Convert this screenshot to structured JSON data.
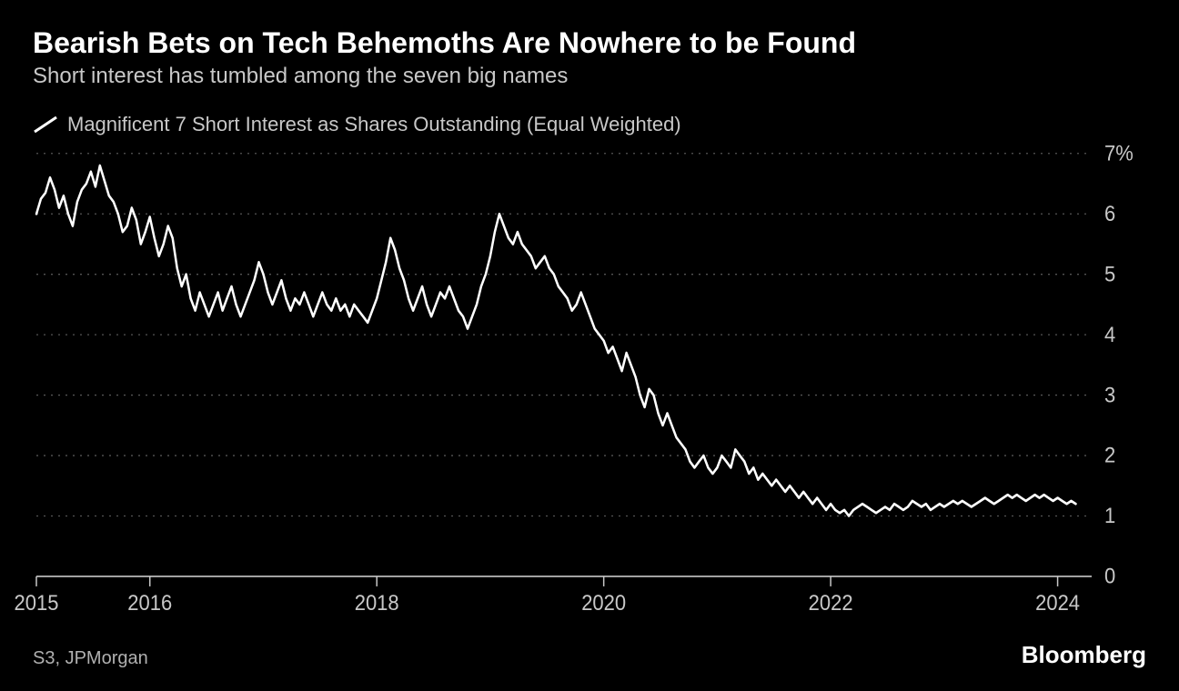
{
  "title": "Bearish Bets on Tech Behemoths Are Nowhere to be Found",
  "subtitle": "Short interest has tumbled among the seven big names",
  "legend": {
    "label": "Magnificent 7 Short Interest as Shares Outstanding (Equal Weighted)"
  },
  "chart": {
    "type": "line",
    "background_color": "#000000",
    "line_color": "#ffffff",
    "line_width": 2.5,
    "grid_color": "#555555",
    "grid_dash": "2 6",
    "axis_color": "#c8c8c8",
    "tick_color": "#c8c8c8",
    "label_color": "#c8c8c8",
    "label_fontsize": 22,
    "xlim": [
      2015.0,
      2024.3
    ],
    "ylim": [
      0,
      7
    ],
    "yticks": [
      0,
      1,
      2,
      3,
      4,
      5,
      6,
      7
    ],
    "ytick_labels": [
      "0",
      "1",
      "2",
      "3",
      "4",
      "5",
      "6",
      "7%"
    ],
    "xticks": [
      2015,
      2016,
      2018,
      2020,
      2022,
      2024
    ],
    "xtick_labels": [
      "2015",
      "2016",
      "2018",
      "2020",
      "2022",
      "2024"
    ],
    "series": [
      {
        "name": "mag7_short_interest",
        "x": [
          2015.0,
          2015.04,
          2015.08,
          2015.12,
          2015.16,
          2015.2,
          2015.24,
          2015.28,
          2015.32,
          2015.36,
          2015.4,
          2015.44,
          2015.48,
          2015.52,
          2015.56,
          2015.6,
          2015.64,
          2015.68,
          2015.72,
          2015.76,
          2015.8,
          2015.84,
          2015.88,
          2015.92,
          2015.96,
          2016.0,
          2016.04,
          2016.08,
          2016.12,
          2016.16,
          2016.2,
          2016.24,
          2016.28,
          2016.32,
          2016.36,
          2016.4,
          2016.44,
          2016.48,
          2016.52,
          2016.56,
          2016.6,
          2016.64,
          2016.68,
          2016.72,
          2016.76,
          2016.8,
          2016.84,
          2016.88,
          2016.92,
          2016.96,
          2017.0,
          2017.04,
          2017.08,
          2017.12,
          2017.16,
          2017.2,
          2017.24,
          2017.28,
          2017.32,
          2017.36,
          2017.4,
          2017.44,
          2017.48,
          2017.52,
          2017.56,
          2017.6,
          2017.64,
          2017.68,
          2017.72,
          2017.76,
          2017.8,
          2017.84,
          2017.88,
          2017.92,
          2017.96,
          2018.0,
          2018.04,
          2018.08,
          2018.12,
          2018.16,
          2018.2,
          2018.24,
          2018.28,
          2018.32,
          2018.36,
          2018.4,
          2018.44,
          2018.48,
          2018.52,
          2018.56,
          2018.6,
          2018.64,
          2018.68,
          2018.72,
          2018.76,
          2018.8,
          2018.84,
          2018.88,
          2018.92,
          2018.96,
          2019.0,
          2019.04,
          2019.08,
          2019.12,
          2019.16,
          2019.2,
          2019.24,
          2019.28,
          2019.32,
          2019.36,
          2019.4,
          2019.44,
          2019.48,
          2019.52,
          2019.56,
          2019.6,
          2019.64,
          2019.68,
          2019.72,
          2019.76,
          2019.8,
          2019.84,
          2019.88,
          2019.92,
          2019.96,
          2020.0,
          2020.04,
          2020.08,
          2020.12,
          2020.16,
          2020.2,
          2020.24,
          2020.28,
          2020.32,
          2020.36,
          2020.4,
          2020.44,
          2020.48,
          2020.52,
          2020.56,
          2020.6,
          2020.64,
          2020.68,
          2020.72,
          2020.76,
          2020.8,
          2020.84,
          2020.88,
          2020.92,
          2020.96,
          2021.0,
          2021.04,
          2021.08,
          2021.12,
          2021.16,
          2021.2,
          2021.24,
          2021.28,
          2021.32,
          2021.36,
          2021.4,
          2021.44,
          2021.48,
          2021.52,
          2021.56,
          2021.6,
          2021.64,
          2021.68,
          2021.72,
          2021.76,
          2021.8,
          2021.84,
          2021.88,
          2021.92,
          2021.96,
          2022.0,
          2022.04,
          2022.08,
          2022.12,
          2022.16,
          2022.2,
          2022.24,
          2022.28,
          2022.32,
          2022.36,
          2022.4,
          2022.44,
          2022.48,
          2022.52,
          2022.56,
          2022.6,
          2022.64,
          2022.68,
          2022.72,
          2022.76,
          2022.8,
          2022.84,
          2022.88,
          2022.92,
          2022.96,
          2023.0,
          2023.04,
          2023.08,
          2023.12,
          2023.16,
          2023.2,
          2023.24,
          2023.28,
          2023.32,
          2023.36,
          2023.4,
          2023.44,
          2023.48,
          2023.52,
          2023.56,
          2023.6,
          2023.64,
          2023.68,
          2023.72,
          2023.76,
          2023.8,
          2023.84,
          2023.88,
          2023.92,
          2023.96,
          2024.0,
          2024.04,
          2024.08,
          2024.12,
          2024.16
        ],
        "y": [
          6.0,
          6.25,
          6.35,
          6.6,
          6.4,
          6.1,
          6.3,
          6.0,
          5.8,
          6.2,
          6.4,
          6.5,
          6.7,
          6.45,
          6.8,
          6.55,
          6.3,
          6.2,
          6.0,
          5.7,
          5.8,
          6.1,
          5.9,
          5.5,
          5.7,
          5.95,
          5.6,
          5.3,
          5.5,
          5.8,
          5.6,
          5.1,
          4.8,
          5.0,
          4.6,
          4.4,
          4.7,
          4.5,
          4.3,
          4.5,
          4.7,
          4.4,
          4.6,
          4.8,
          4.5,
          4.3,
          4.5,
          4.7,
          4.9,
          5.2,
          5.0,
          4.7,
          4.5,
          4.7,
          4.9,
          4.6,
          4.4,
          4.6,
          4.5,
          4.7,
          4.5,
          4.3,
          4.5,
          4.7,
          4.5,
          4.4,
          4.6,
          4.4,
          4.5,
          4.3,
          4.5,
          4.4,
          4.3,
          4.2,
          4.4,
          4.6,
          4.9,
          5.2,
          5.6,
          5.4,
          5.1,
          4.9,
          4.6,
          4.4,
          4.6,
          4.8,
          4.5,
          4.3,
          4.5,
          4.7,
          4.6,
          4.8,
          4.6,
          4.4,
          4.3,
          4.1,
          4.3,
          4.5,
          4.8,
          5.0,
          5.3,
          5.7,
          6.0,
          5.8,
          5.6,
          5.5,
          5.7,
          5.5,
          5.4,
          5.3,
          5.1,
          5.2,
          5.3,
          5.1,
          5.0,
          4.8,
          4.7,
          4.6,
          4.4,
          4.5,
          4.7,
          4.5,
          4.3,
          4.1,
          4.0,
          3.9,
          3.7,
          3.8,
          3.6,
          3.4,
          3.7,
          3.5,
          3.3,
          3.0,
          2.8,
          3.1,
          3.0,
          2.7,
          2.5,
          2.7,
          2.5,
          2.3,
          2.2,
          2.1,
          1.9,
          1.8,
          1.9,
          2.0,
          1.8,
          1.7,
          1.8,
          2.0,
          1.9,
          1.8,
          2.1,
          2.0,
          1.9,
          1.7,
          1.8,
          1.6,
          1.7,
          1.6,
          1.5,
          1.6,
          1.5,
          1.4,
          1.5,
          1.4,
          1.3,
          1.4,
          1.3,
          1.2,
          1.3,
          1.2,
          1.1,
          1.2,
          1.1,
          1.05,
          1.1,
          1.0,
          1.1,
          1.15,
          1.2,
          1.15,
          1.1,
          1.05,
          1.1,
          1.15,
          1.1,
          1.2,
          1.15,
          1.1,
          1.15,
          1.25,
          1.2,
          1.15,
          1.2,
          1.1,
          1.15,
          1.2,
          1.15,
          1.2,
          1.25,
          1.2,
          1.25,
          1.2,
          1.15,
          1.2,
          1.25,
          1.3,
          1.25,
          1.2,
          1.25,
          1.3,
          1.35,
          1.3,
          1.35,
          1.3,
          1.25,
          1.3,
          1.35,
          1.3,
          1.35,
          1.3,
          1.25,
          1.3,
          1.25,
          1.2,
          1.25,
          1.2
        ]
      }
    ]
  },
  "source": "S3, JPMorgan",
  "brand": "Bloomberg"
}
